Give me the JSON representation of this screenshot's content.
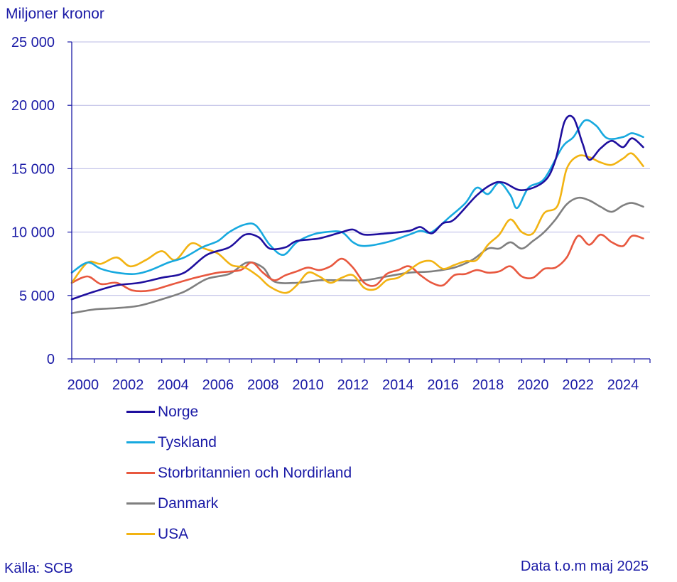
{
  "chart_data": {
    "type": "line",
    "ylabel": "Miljoner kronor",
    "ylim": [
      0,
      25000
    ],
    "yticks": [
      {
        "value": 0,
        "label": "0"
      },
      {
        "value": 5000,
        "label": "5 000"
      },
      {
        "value": 10000,
        "label": "10 000"
      },
      {
        "value": 15000,
        "label": "15 000"
      },
      {
        "value": 20000,
        "label": "20 000"
      },
      {
        "value": 25000,
        "label": "25 000"
      }
    ],
    "xlim": [
      2000,
      2025.7
    ],
    "xticks": [
      "2000",
      "2002",
      "2004",
      "2006",
      "2008",
      "2010",
      "2012",
      "2014",
      "2016",
      "2018",
      "2020",
      "2022",
      "2024"
    ],
    "grid": "horizontal",
    "legend_position": "bottom-left",
    "source": "Källa: SCB",
    "note": "Data t.o.m maj 2025",
    "series": [
      {
        "name": "Norge",
        "color": "#1f0f9e",
        "x": [
          2000,
          2001,
          2002,
          2003,
          2004,
          2005,
          2006,
          2007,
          2007.7,
          2008.3,
          2008.8,
          2009.5,
          2010,
          2011,
          2012,
          2012.5,
          2013,
          2014,
          2015,
          2015.5,
          2016,
          2016.5,
          2017,
          2018,
          2018.7,
          2019.2,
          2020,
          2021,
          2021.5,
          2021.9,
          2022.3,
          2022.7,
          2023,
          2023.5,
          2024,
          2024.5,
          2024.9,
          2025.4
        ],
        "values": [
          4700,
          5300,
          5800,
          6000,
          6400,
          6800,
          8200,
          8800,
          9800,
          9600,
          8700,
          8800,
          9300,
          9500,
          10000,
          10200,
          9800,
          9900,
          10100,
          10400,
          9900,
          10700,
          11000,
          12900,
          13800,
          13900,
          13300,
          14000,
          15700,
          18700,
          19000,
          17000,
          15700,
          16600,
          17200,
          16700,
          17400,
          16700
        ]
      },
      {
        "name": "Tyskland",
        "color": "#17a9df",
        "x": [
          2000,
          2000.7,
          2001.3,
          2002,
          2002.8,
          2003.5,
          2004.3,
          2005,
          2005.8,
          2006.5,
          2007,
          2007.7,
          2008.2,
          2008.8,
          2009.4,
          2010,
          2010.7,
          2011.3,
          2012,
          2012.5,
          2013,
          2014,
          2015,
          2015.5,
          2016,
          2016.8,
          2017.5,
          2018,
          2018.5,
          2019,
          2019.5,
          2019.8,
          2020.3,
          2021,
          2021.8,
          2022.3,
          2022.8,
          2023.3,
          2023.8,
          2024.5,
          2024.9,
          2025.4
        ],
        "values": [
          6800,
          7600,
          7100,
          6800,
          6700,
          7000,
          7600,
          8000,
          8800,
          9300,
          10000,
          10600,
          10500,
          9000,
          8200,
          9200,
          9800,
          10000,
          10000,
          9200,
          8900,
          9200,
          9800,
          10100,
          10000,
          11200,
          12300,
          13500,
          13000,
          13900,
          12900,
          11900,
          13500,
          14200,
          16700,
          17500,
          18800,
          18400,
          17400,
          17500,
          17800,
          17500
        ]
      },
      {
        "name": "Storbritannien och Nordirland",
        "color": "#e8583f",
        "x": [
          2000,
          2000.7,
          2001.3,
          2002,
          2002.7,
          2003.5,
          2004.5,
          2005.5,
          2006.5,
          2007.5,
          2008,
          2008.5,
          2009,
          2009.5,
          2010,
          2010.5,
          2011,
          2011.5,
          2012,
          2012.5,
          2013,
          2013.5,
          2014,
          2014.5,
          2015,
          2015.5,
          2016,
          2016.5,
          2017,
          2017.5,
          2018,
          2018.5,
          2019,
          2019.5,
          2020,
          2020.5,
          2021,
          2021.5,
          2022,
          2022.5,
          2023,
          2023.5,
          2024,
          2024.5,
          2024.9,
          2025.4
        ],
        "values": [
          6000,
          6500,
          5900,
          6000,
          5400,
          5400,
          5900,
          6400,
          6800,
          7000,
          7600,
          6800,
          6200,
          6600,
          6900,
          7200,
          7000,
          7300,
          7900,
          7200,
          6000,
          5800,
          6700,
          7000,
          7300,
          6600,
          6000,
          5800,
          6600,
          6700,
          7000,
          6800,
          6900,
          7300,
          6500,
          6400,
          7100,
          7200,
          8000,
          9700,
          9000,
          9800,
          9200,
          8900,
          9700,
          9500
        ]
      },
      {
        "name": "Danmark",
        "color": "#7f7f7f",
        "x": [
          2000,
          2001,
          2002,
          2003,
          2004,
          2005,
          2006,
          2007,
          2007.8,
          2008.5,
          2009,
          2010,
          2011,
          2012,
          2013,
          2014,
          2015,
          2016,
          2017,
          2017.8,
          2018.5,
          2019,
          2019.5,
          2020,
          2020.5,
          2021,
          2021.5,
          2022,
          2022.5,
          2023,
          2023.5,
          2024,
          2024.5,
          2024.9,
          2025.4
        ],
        "values": [
          3600,
          3900,
          4000,
          4200,
          4700,
          5300,
          6300,
          6700,
          7600,
          7200,
          6100,
          6000,
          6200,
          6200,
          6200,
          6500,
          6800,
          6900,
          7200,
          7800,
          8700,
          8700,
          9200,
          8700,
          9300,
          10000,
          11000,
          12200,
          12700,
          12500,
          12000,
          11600,
          12100,
          12300,
          12000
        ]
      },
      {
        "name": "USA",
        "color": "#f2b312",
        "x": [
          2000,
          2000.7,
          2001.3,
          2002,
          2002.6,
          2003.3,
          2004,
          2004.6,
          2005.3,
          2005.9,
          2006.5,
          2007.1,
          2007.7,
          2008.3,
          2008.8,
          2009.5,
          2010,
          2010.5,
          2011,
          2011.5,
          2012,
          2012.5,
          2013,
          2013.5,
          2014,
          2014.5,
          2015,
          2015.5,
          2016,
          2016.5,
          2017,
          2017.5,
          2018,
          2018.5,
          2019,
          2019.5,
          2020,
          2020.5,
          2021,
          2021.6,
          2022,
          2022.5,
          2023,
          2023.5,
          2024,
          2024.5,
          2024.9,
          2025.4
        ],
        "values": [
          6000,
          7600,
          7500,
          8000,
          7300,
          7800,
          8500,
          7800,
          9100,
          8700,
          8300,
          7400,
          7200,
          6500,
          5700,
          5200,
          5800,
          6800,
          6500,
          6000,
          6400,
          6600,
          5600,
          5500,
          6200,
          6400,
          7000,
          7600,
          7700,
          7100,
          7400,
          7700,
          7800,
          9000,
          9800,
          11000,
          10000,
          9900,
          11500,
          12100,
          15000,
          16000,
          15900,
          15500,
          15300,
          15800,
          16200,
          15200
        ]
      }
    ]
  }
}
